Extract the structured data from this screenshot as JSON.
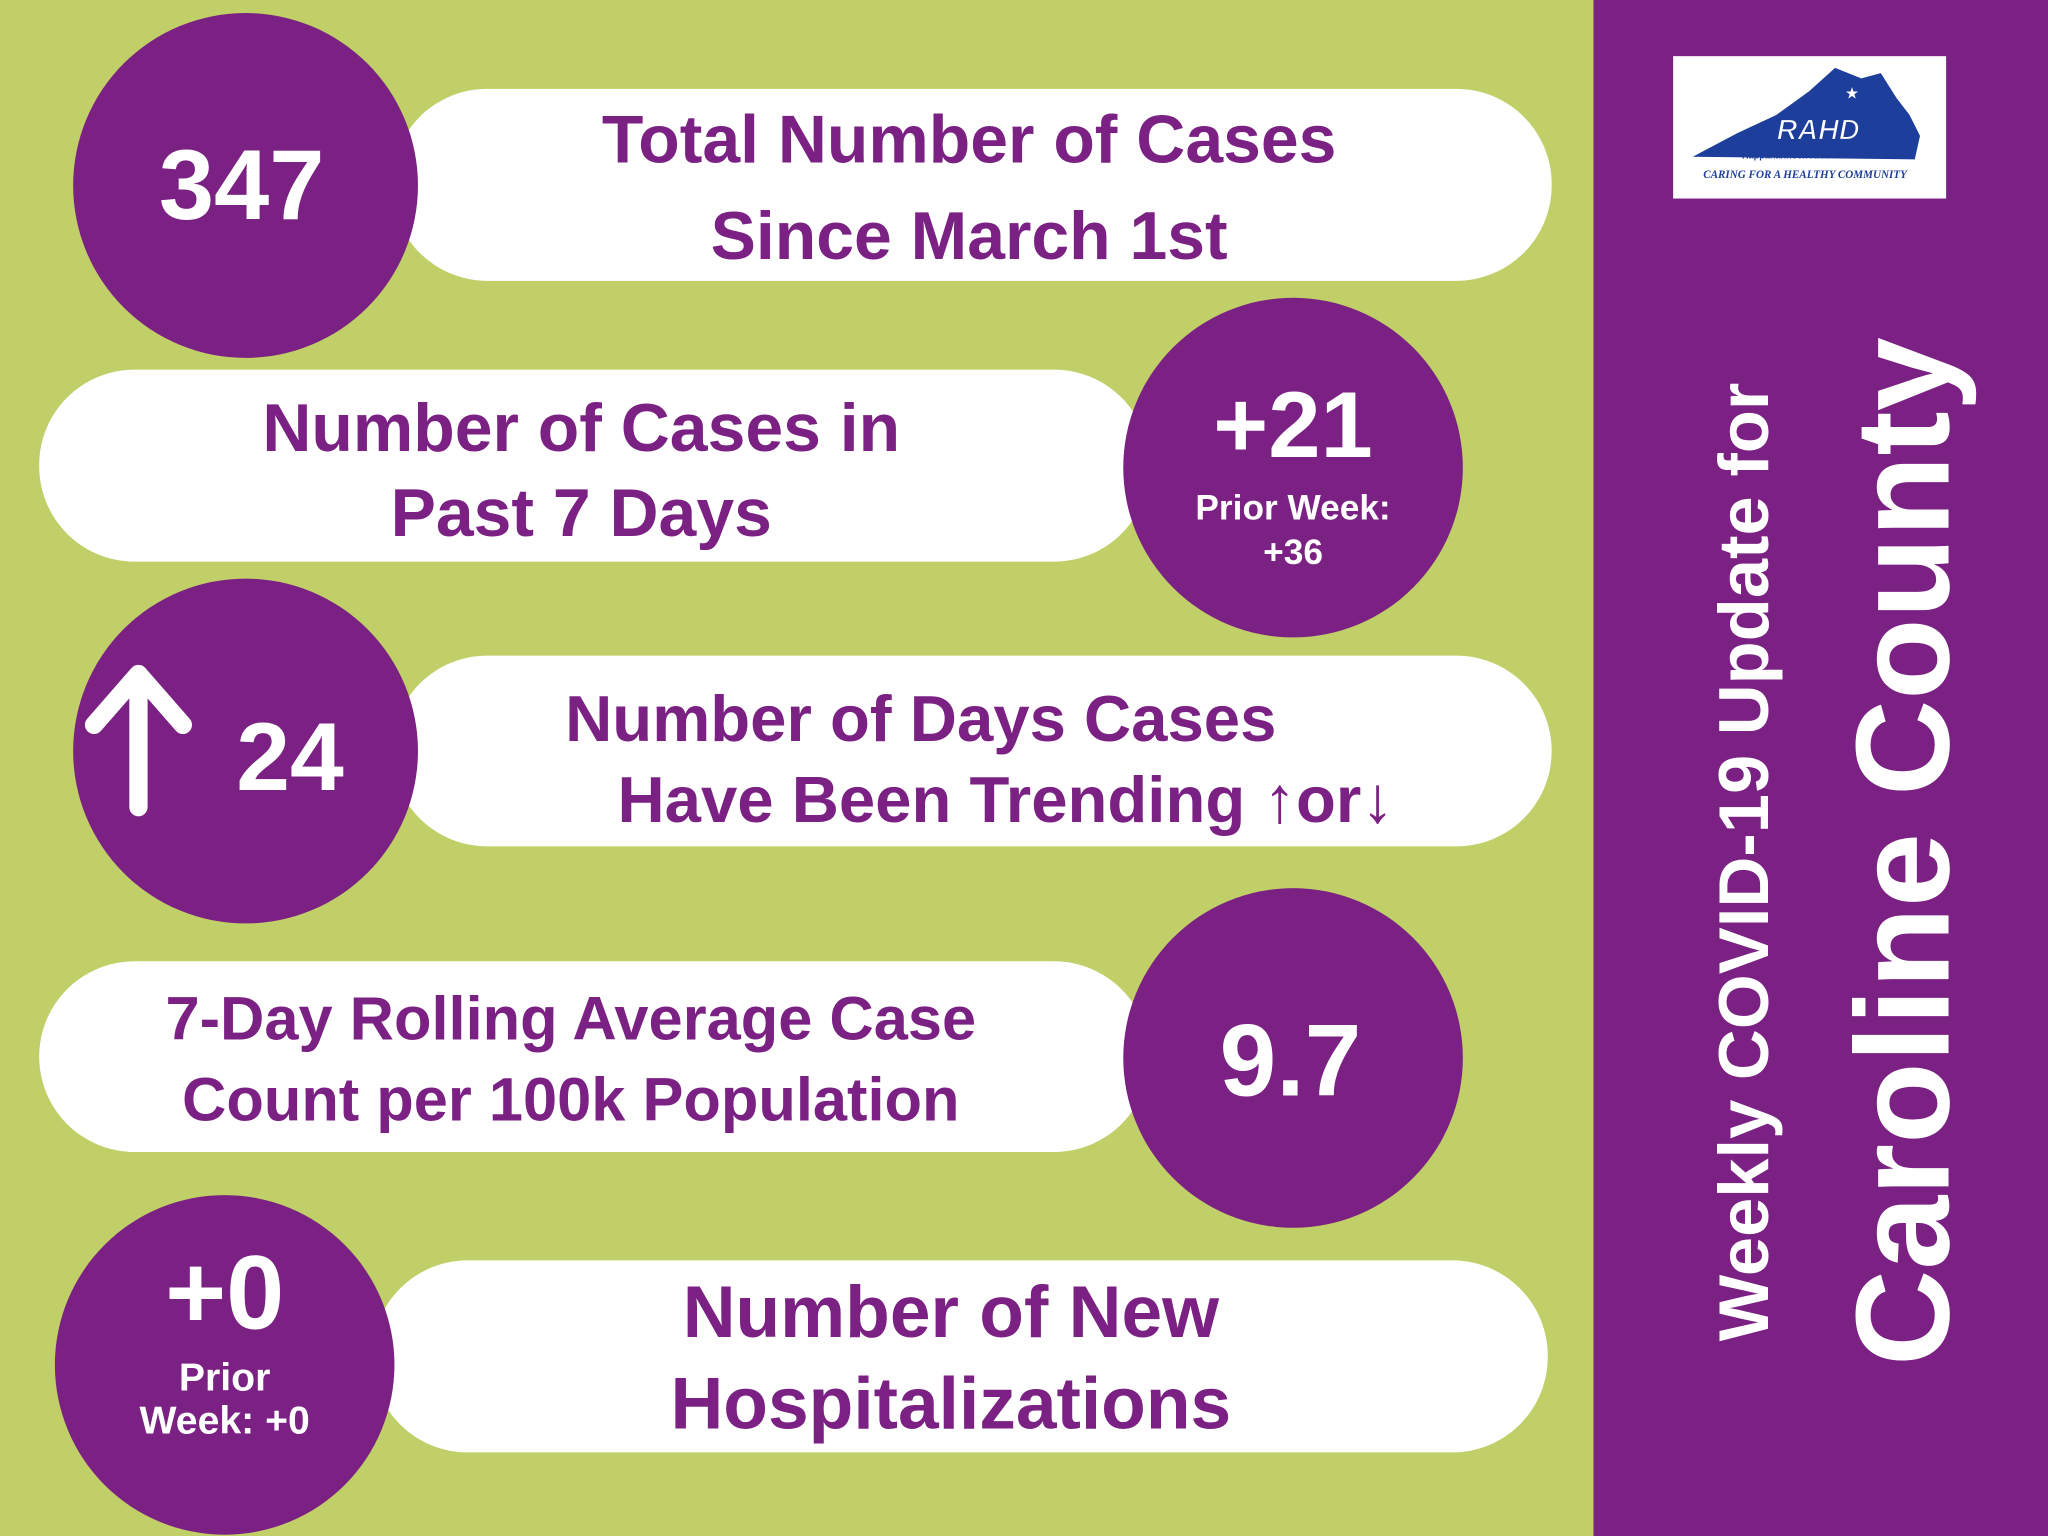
{
  "panel": {
    "title_line1": "Weekly COVID-19 Update for",
    "title_line2": "Caroline County"
  },
  "logo": {
    "name": "RAHD",
    "district": "Rappahannock Area Health District",
    "tagline": "CARING FOR A HEALTHY COMMUNITY"
  },
  "stats": [
    {
      "value": "347",
      "label": [
        "Total Number of Cases",
        "Since March 1st"
      ]
    },
    {
      "value": "+21",
      "prior": [
        "Prior Week:",
        "+36"
      ],
      "label": [
        "Number of Cases in",
        "Past 7 Days"
      ]
    },
    {
      "value": "24",
      "label": [
        "Number of Days Cases",
        "Have Been Trending ↑or↓"
      ]
    },
    {
      "value": "9.7",
      "label": [
        "7-Day Rolling Average Case",
        "Count per 100k Population"
      ]
    },
    {
      "value": "+0",
      "prior": [
        "Prior",
        "Week: +0"
      ],
      "label": [
        "Number of New",
        "Hospitalizations"
      ]
    }
  ]
}
